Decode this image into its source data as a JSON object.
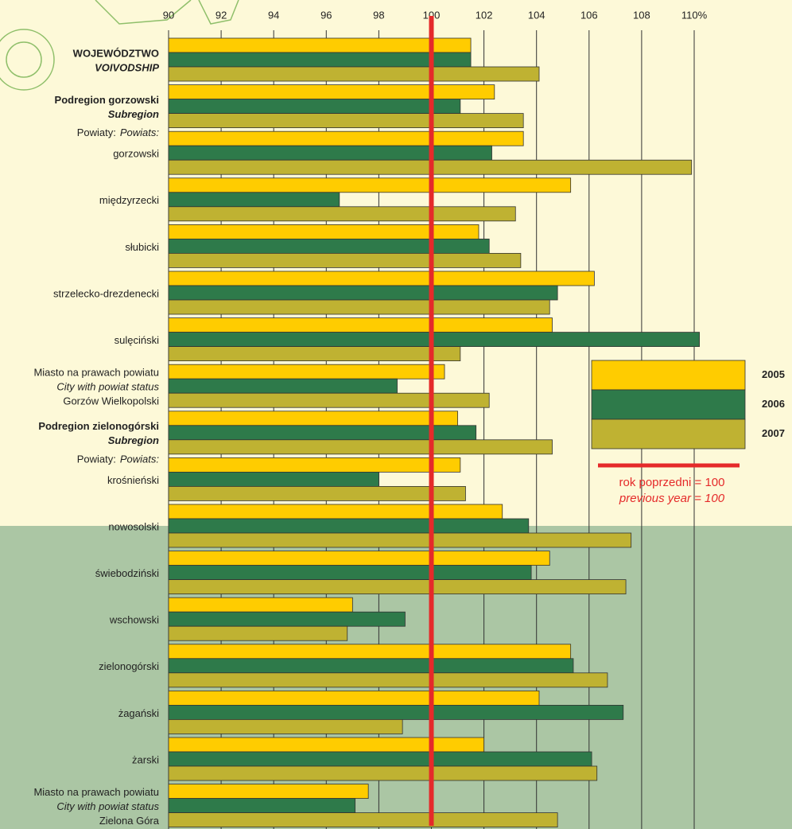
{
  "chart_data": {
    "type": "bar",
    "orientation": "horizontal",
    "categories": [
      [
        "WOJEWÓDZTWO",
        "VOIVODSHIP"
      ],
      [
        "Podregion gorzowski",
        "Subregion"
      ],
      [
        "gorzowski"
      ],
      [
        "międzyrzecki"
      ],
      [
        "słubicki"
      ],
      [
        "strzelecko-drezdenecki"
      ],
      [
        "sulęciński"
      ],
      [
        "Miasto na prawach powiatu",
        "City with powiat status",
        "Gorzów Wielkopolski"
      ],
      [
        "Podregion zielonogórski",
        "Subregion"
      ],
      [
        "krośnieński"
      ],
      [
        "nowosolski"
      ],
      [
        "świebodziński"
      ],
      [
        "wschowski"
      ],
      [
        "zielonogórski"
      ],
      [
        "żagański"
      ],
      [
        "żarski"
      ],
      [
        "Miasto na prawach powiatu",
        "City with powiat status",
        "Zielona Góra"
      ]
    ],
    "category_line_styles": [
      [
        "b",
        "bi"
      ],
      [
        "b",
        "bi"
      ],
      [
        ""
      ],
      [
        ""
      ],
      [
        ""
      ],
      [
        ""
      ],
      [
        ""
      ],
      [
        "",
        "i",
        ""
      ],
      [
        "b",
        "bi"
      ],
      [
        ""
      ],
      [
        ""
      ],
      [
        ""
      ],
      [
        ""
      ],
      [
        ""
      ],
      [
        ""
      ],
      [
        ""
      ],
      [
        "",
        "i",
        ""
      ]
    ],
    "group_notes": [
      {
        "before": 2,
        "lines": [
          "Powiaty:",
          "Powiats:"
        ]
      },
      {
        "before": 9,
        "lines": [
          "Powiaty:",
          "Powiats:"
        ]
      }
    ],
    "series": [
      {
        "name": "2005",
        "color": "#ffcc00",
        "values": [
          101.5,
          102.4,
          103.5,
          105.3,
          101.8,
          106.2,
          104.6,
          100.5,
          101.0,
          101.1,
          102.7,
          104.5,
          97.0,
          105.3,
          104.1,
          102.0,
          97.6
        ]
      },
      {
        "name": "2006",
        "color": "#2e7a4a",
        "values": [
          101.5,
          101.1,
          102.3,
          96.5,
          102.2,
          104.8,
          110.2,
          98.7,
          101.7,
          98.0,
          103.7,
          103.8,
          99.0,
          105.4,
          107.3,
          106.1,
          97.1
        ]
      },
      {
        "name": "2007",
        "color": "#bfb232",
        "values": [
          104.1,
          103.5,
          109.9,
          103.2,
          103.4,
          104.5,
          101.1,
          102.2,
          104.6,
          101.3,
          107.6,
          107.4,
          96.8,
          106.7,
          98.9,
          106.3,
          104.8
        ]
      }
    ],
    "xlim": [
      90,
      110
    ],
    "xticks": [
      90,
      92,
      94,
      96,
      98,
      100,
      102,
      104,
      106,
      108,
      {
        "value": 110,
        "label": "110%"
      }
    ],
    "grid": true,
    "reference_line": {
      "value": 100,
      "color": "#e52a2a",
      "lines": [
        "rok poprzedni = 100",
        "previous year = 100"
      ]
    },
    "legend": "right"
  }
}
